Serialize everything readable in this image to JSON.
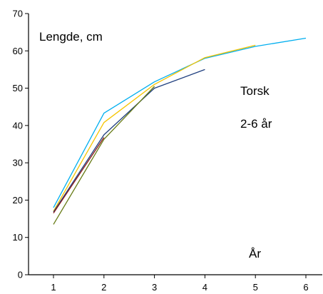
{
  "chart_data": {
    "type": "line",
    "title": "",
    "xlabel": "",
    "ylabel": "",
    "xlim": [
      0.5,
      6.3
    ],
    "ylim": [
      0,
      70
    ],
    "x_ticks": [
      1,
      2,
      3,
      4,
      5,
      6
    ],
    "y_ticks": [
      0,
      10,
      20,
      30,
      40,
      50,
      60,
      70
    ],
    "grid": false,
    "annotations": {
      "y_unit": "Lengde, cm",
      "species": "Torsk",
      "age_range": "2-6 år",
      "x_unit": "År"
    },
    "series": [
      {
        "color": "#00aeef",
        "x": [
          1,
          2,
          3,
          4,
          5,
          6
        ],
        "y": [
          18,
          43.3,
          51.7,
          58,
          61.2,
          63.4
        ]
      },
      {
        "color": "#f5c400",
        "x": [
          1,
          2,
          3,
          4,
          5
        ],
        "y": [
          17,
          40.8,
          51,
          58.2,
          61.5
        ]
      },
      {
        "color": "#1f3f7f",
        "x": [
          1,
          2,
          3,
          4
        ],
        "y": [
          16.8,
          37.5,
          50,
          55
        ]
      },
      {
        "color": "#8b1a1a",
        "x": [
          1,
          2
        ],
        "y": [
          16.5,
          36.8
        ]
      },
      {
        "color": "#667a14",
        "x": [
          1,
          2,
          3
        ],
        "y": [
          13.5,
          36.3,
          50.5
        ]
      }
    ]
  }
}
